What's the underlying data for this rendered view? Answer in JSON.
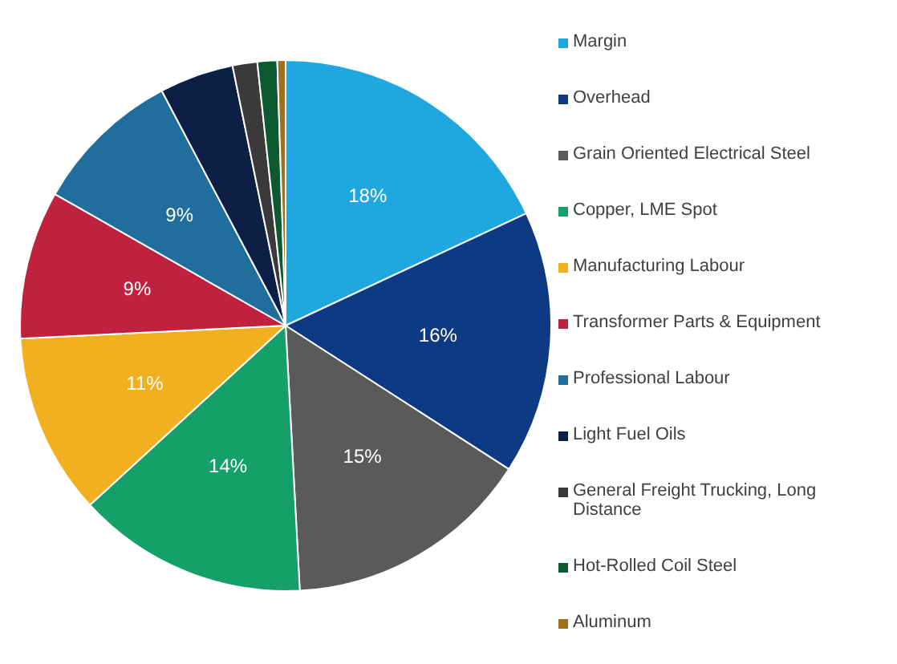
{
  "chart_data": {
    "type": "pie",
    "categories": [
      "Margin",
      "Overhead",
      "Grain Oriented Electrical Steel",
      "Copper, LME Spot",
      "Manufacturing Labour",
      "Transformer Parts & Equipment",
      "Professional Labour",
      "Light Fuel Oils",
      "General Freight Trucking, Long Distance",
      "Hot-Rolled Coil Steel",
      "Aluminum"
    ],
    "values": [
      18,
      16,
      15,
      14,
      11,
      9,
      9,
      4.5,
      1.5,
      1.2,
      0.5
    ],
    "value_labels": [
      "18%",
      "16%",
      "15%",
      "14%",
      "11%",
      "9%",
      "9%",
      null,
      null,
      null,
      null
    ],
    "colors": [
      "#1fa8e0",
      "#0d3a82",
      "#5a5a5a",
      "#15a06a",
      "#f0b020",
      "#c0213f",
      "#1f6e9c",
      "#0d1f45",
      "#3a3a3a",
      "#0d5a30",
      "#a07020"
    ],
    "legend": "right"
  }
}
